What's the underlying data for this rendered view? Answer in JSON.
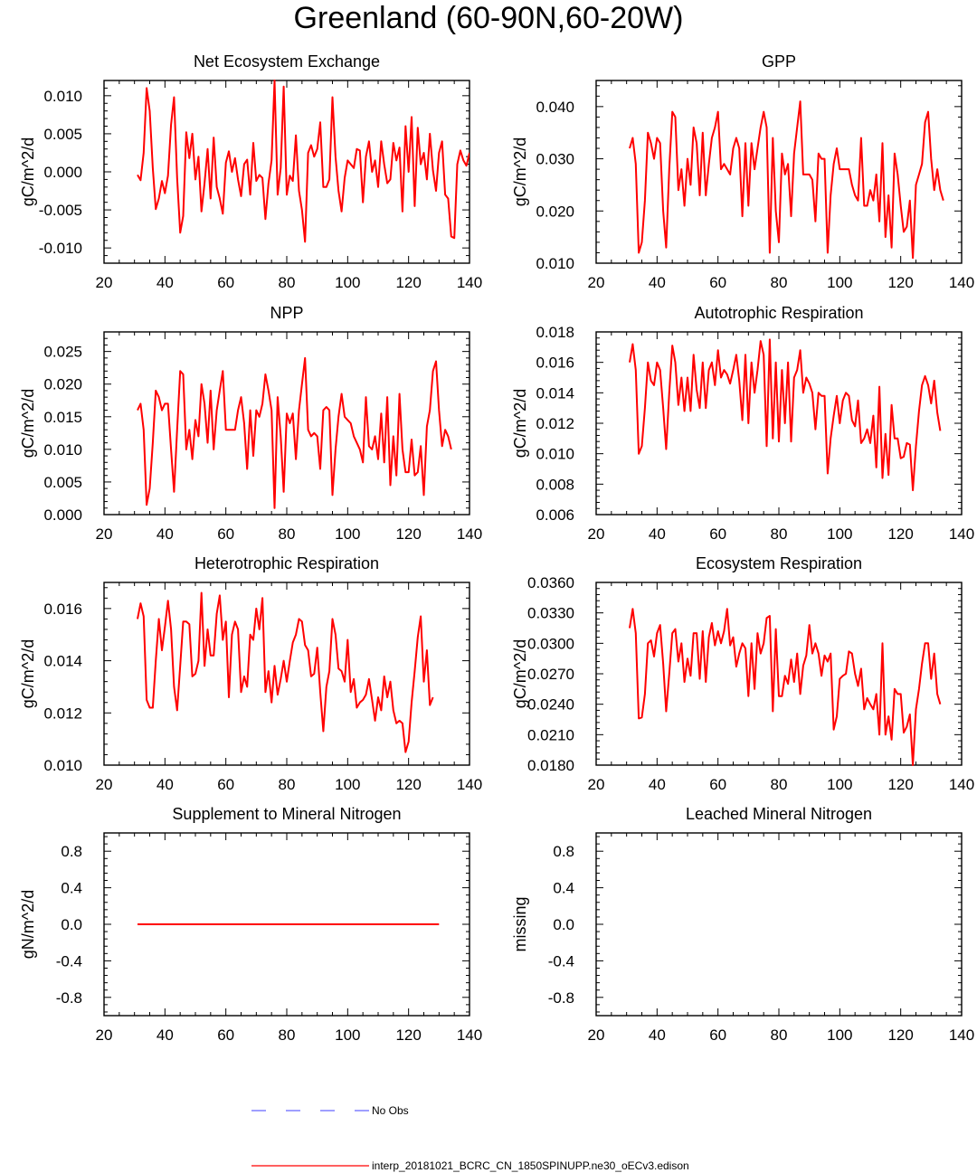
{
  "page_title": "Greenland (60-90N,60-20W)",
  "colors": {
    "model_line": "#ff0000",
    "obs_line": "#6666ff",
    "axis": "#000000"
  },
  "legend": {
    "entries": [
      {
        "label": "No Obs",
        "style": "dashed",
        "color": "#6666ff"
      },
      {
        "label": "interp_20181021_BCRC_CN_1850SPINUPP.ne30_oECv3.edison",
        "style": "solid",
        "color": "#ff0000"
      }
    ]
  },
  "chart_data": [
    {
      "type": "line",
      "title": "Net Ecosystem Exchange",
      "ylabel": "gC/m^2/d",
      "xlim": [
        20,
        140
      ],
      "ylim": [
        -0.012,
        0.012
      ],
      "xticks": [
        20,
        40,
        60,
        80,
        100,
        120,
        140
      ],
      "yticks": [
        -0.01,
        -0.005,
        0.0,
        0.005,
        0.01
      ],
      "ytick_labels": [
        "-0.010",
        "-0.005",
        "0.000",
        "0.005",
        "0.010"
      ],
      "x_start": 31,
      "series": [
        {
          "name": "interp_20181021_BCRC_CN_1850SPINUPP.ne30_oECv3.edison",
          "values": [
            -0.0004,
            -0.0011,
            0.0025,
            0.011,
            0.008,
            0.0005,
            -0.0049,
            -0.0035,
            -0.0012,
            -0.0028,
            -0.0005,
            0.0062,
            0.0098,
            -0.0008,
            -0.008,
            -0.0058,
            0.0052,
            0.0018,
            0.005,
            -0.001,
            0.002,
            -0.0052,
            -0.0015,
            0.003,
            -0.0035,
            0.0045,
            -0.002,
            -0.0035,
            -0.0055,
            0.0012,
            0.0027,
            0.0,
            0.0018,
            -0.001,
            -0.0032,
            0.001,
            0.0016,
            -0.003,
            0.0038,
            -0.0012,
            -0.0004,
            -0.0008,
            -0.0062,
            -0.0015,
            0.0015,
            0.012,
            -0.003,
            0.0005,
            0.0112,
            -0.003,
            -0.0005,
            -0.0012,
            0.0048,
            -0.0025,
            -0.005,
            -0.0092,
            0.0025,
            0.0035,
            0.002,
            0.003,
            0.0065,
            -0.002,
            -0.002,
            -0.001,
            0.0098,
            0.002,
            -0.0025,
            -0.0052,
            -0.0008,
            0.0015,
            0.001,
            0.0005,
            0.003,
            0.0028,
            -0.004,
            0.002,
            0.004,
            0.0,
            0.0015,
            -0.002,
            0.004,
            0.001,
            -0.0015,
            -0.001,
            0.0038,
            0.0015,
            0.0032,
            -0.0052,
            0.006,
            0.0,
            0.0072,
            -0.0045,
            0.0058,
            0.001,
            0.0025,
            -0.001,
            0.005,
            0.0002,
            -0.0025,
            0.0025,
            0.004,
            -0.003,
            -0.0035,
            -0.0085,
            -0.0087,
            0.001,
            0.0028,
            0.0015,
            0.0008,
            0.0025
          ]
        }
      ]
    },
    {
      "type": "line",
      "title": "GPP",
      "ylabel": "gC/m^2/d",
      "xlim": [
        20,
        140
      ],
      "ylim": [
        0.01,
        0.045
      ],
      "xticks": [
        20,
        40,
        60,
        80,
        100,
        120,
        140
      ],
      "yticks": [
        0.01,
        0.02,
        0.03,
        0.04
      ],
      "ytick_labels": [
        "0.010",
        "0.020",
        "0.030",
        "0.040"
      ],
      "x_start": 31,
      "series": [
        {
          "name": "interp_20181021_BCRC_CN_1850SPINUPP.ne30_oECv3.edison",
          "values": [
            0.032,
            0.034,
            0.029,
            0.012,
            0.014,
            0.022,
            0.035,
            0.033,
            0.03,
            0.034,
            0.033,
            0.02,
            0.013,
            0.028,
            0.039,
            0.038,
            0.024,
            0.028,
            0.021,
            0.03,
            0.025,
            0.036,
            0.033,
            0.023,
            0.035,
            0.023,
            0.029,
            0.034,
            0.036,
            0.039,
            0.028,
            0.029,
            0.028,
            0.027,
            0.032,
            0.034,
            0.032,
            0.019,
            0.033,
            0.021,
            0.033,
            0.028,
            0.032,
            0.036,
            0.039,
            0.036,
            0.012,
            0.034,
            0.02,
            0.014,
            0.031,
            0.027,
            0.029,
            0.019,
            0.031,
            0.036,
            0.041,
            0.027,
            0.027,
            0.027,
            0.026,
            0.018,
            0.031,
            0.03,
            0.03,
            0.012,
            0.023,
            0.029,
            0.032,
            0.028,
            0.028,
            0.028,
            0.028,
            0.025,
            0.023,
            0.022,
            0.034,
            0.021,
            0.021,
            0.024,
            0.022,
            0.027,
            0.018,
            0.033,
            0.015,
            0.023,
            0.013,
            0.031,
            0.027,
            0.021,
            0.016,
            0.017,
            0.022,
            0.011,
            0.025,
            0.027,
            0.029,
            0.037,
            0.039,
            0.03,
            0.024,
            0.028,
            0.024,
            0.022
          ]
        }
      ]
    },
    {
      "type": "line",
      "title": "NPP",
      "ylabel": "gC/m^2/d",
      "xlim": [
        20,
        140
      ],
      "ylim": [
        0.0,
        0.028
      ],
      "xticks": [
        20,
        40,
        60,
        80,
        100,
        120,
        140
      ],
      "yticks": [
        0.0,
        0.005,
        0.01,
        0.015,
        0.02,
        0.025
      ],
      "ytick_labels": [
        "0.000",
        "0.005",
        "0.010",
        "0.015",
        "0.020",
        "0.025"
      ],
      "x_start": 31,
      "series": [
        {
          "name": "interp_20181021_BCRC_CN_1850SPINUPP.ne30_oECv3.edison",
          "values": [
            0.016,
            0.017,
            0.013,
            0.0015,
            0.004,
            0.011,
            0.019,
            0.018,
            0.016,
            0.017,
            0.017,
            0.01,
            0.0035,
            0.013,
            0.022,
            0.0215,
            0.01,
            0.013,
            0.0085,
            0.0145,
            0.012,
            0.02,
            0.017,
            0.011,
            0.019,
            0.01,
            0.016,
            0.019,
            0.022,
            0.013,
            0.013,
            0.013,
            0.013,
            0.016,
            0.018,
            0.014,
            0.007,
            0.016,
            0.009,
            0.016,
            0.015,
            0.017,
            0.0215,
            0.019,
            0.016,
            0.001,
            0.018,
            0.012,
            0.0035,
            0.0155,
            0.014,
            0.0155,
            0.0085,
            0.016,
            0.02,
            0.024,
            0.013,
            0.012,
            0.0125,
            0.012,
            0.007,
            0.016,
            0.0165,
            0.016,
            0.003,
            0.01,
            0.015,
            0.0185,
            0.015,
            0.0145,
            0.014,
            0.012,
            0.011,
            0.01,
            0.008,
            0.018,
            0.0105,
            0.01,
            0.012,
            0.0085,
            0.0155,
            0.008,
            0.018,
            0.0045,
            0.012,
            0.006,
            0.0185,
            0.01,
            0.0065,
            0.0065,
            0.0115,
            0.006,
            0.0065,
            0.0105,
            0.003,
            0.0135,
            0.016,
            0.022,
            0.0235,
            0.016,
            0.0105,
            0.013,
            0.012,
            0.01
          ]
        }
      ]
    },
    {
      "type": "line",
      "title": "Autotrophic Respiration",
      "ylabel": "gC/m^2/d",
      "xlim": [
        20,
        140
      ],
      "ylim": [
        0.006,
        0.018
      ],
      "xticks": [
        20,
        40,
        60,
        80,
        100,
        120,
        140
      ],
      "yticks": [
        0.006,
        0.008,
        0.01,
        0.012,
        0.014,
        0.016,
        0.018
      ],
      "ytick_labels": [
        "0.006",
        "0.008",
        "0.010",
        "0.012",
        "0.014",
        "0.016",
        "0.018"
      ],
      "x_start": 31,
      "series": [
        {
          "name": "interp_20181021_BCRC_CN_1850SPINUPP.ne30_oECv3.edison",
          "values": [
            0.016,
            0.0172,
            0.0155,
            0.01,
            0.0105,
            0.013,
            0.016,
            0.0148,
            0.0145,
            0.016,
            0.0155,
            0.013,
            0.0103,
            0.014,
            0.0171,
            0.016,
            0.0132,
            0.015,
            0.0128,
            0.015,
            0.0128,
            0.0165,
            0.0142,
            0.013,
            0.016,
            0.013,
            0.0155,
            0.016,
            0.0145,
            0.0168,
            0.015,
            0.0155,
            0.0152,
            0.0146,
            0.0155,
            0.0165,
            0.0148,
            0.0122,
            0.0165,
            0.012,
            0.016,
            0.014,
            0.0155,
            0.0174,
            0.0165,
            0.0105,
            0.0175,
            0.011,
            0.016,
            0.0108,
            0.0155,
            0.012,
            0.016,
            0.0108,
            0.015,
            0.0155,
            0.0168,
            0.014,
            0.015,
            0.0146,
            0.014,
            0.0116,
            0.014,
            0.0138,
            0.0138,
            0.0087,
            0.011,
            0.0125,
            0.0138,
            0.012,
            0.0135,
            0.014,
            0.0138,
            0.0122,
            0.0118,
            0.0135,
            0.0107,
            0.011,
            0.0116,
            0.0107,
            0.0125,
            0.0091,
            0.0144,
            0.0084,
            0.0113,
            0.0086,
            0.0132,
            0.011,
            0.011,
            0.0097,
            0.0098,
            0.0107,
            0.0106,
            0.0076,
            0.0105,
            0.0128,
            0.0145,
            0.0151,
            0.0145,
            0.0133,
            0.0148,
            0.0127,
            0.0115
          ]
        }
      ]
    },
    {
      "type": "line",
      "title": "Heterotrophic Respiration",
      "ylabel": "gC/m^2/d",
      "xlim": [
        20,
        140
      ],
      "ylim": [
        0.01,
        0.017
      ],
      "xticks": [
        20,
        40,
        60,
        80,
        100,
        120,
        140
      ],
      "yticks": [
        0.01,
        0.012,
        0.014,
        0.016
      ],
      "ytick_labels": [
        "0.010",
        "0.012",
        "0.014",
        "0.016"
      ],
      "x_start": 31,
      "series": [
        {
          "name": "interp_20181021_BCRC_CN_1850SPINUPP.ne30_oECv3.edison",
          "values": [
            0.0156,
            0.0162,
            0.0157,
            0.0125,
            0.0122,
            0.0122,
            0.014,
            0.0156,
            0.0144,
            0.0153,
            0.0163,
            0.0152,
            0.013,
            0.0121,
            0.0138,
            0.0155,
            0.0155,
            0.0154,
            0.0134,
            0.0135,
            0.014,
            0.0166,
            0.0138,
            0.0152,
            0.0142,
            0.0142,
            0.0158,
            0.0165,
            0.0148,
            0.0155,
            0.0126,
            0.015,
            0.0155,
            0.0152,
            0.0128,
            0.0134,
            0.013,
            0.015,
            0.0148,
            0.016,
            0.0152,
            0.0164,
            0.0128,
            0.0136,
            0.0124,
            0.0138,
            0.0127,
            0.0133,
            0.014,
            0.0132,
            0.014,
            0.0147,
            0.015,
            0.0156,
            0.0155,
            0.0146,
            0.0144,
            0.0134,
            0.0135,
            0.0145,
            0.0128,
            0.0113,
            0.013,
            0.0136,
            0.0156,
            0.015,
            0.0137,
            0.0136,
            0.0132,
            0.0148,
            0.0128,
            0.0133,
            0.0122,
            0.0124,
            0.0125,
            0.0127,
            0.0133,
            0.0125,
            0.0117,
            0.0126,
            0.0121,
            0.0134,
            0.0126,
            0.0132,
            0.0121,
            0.0116,
            0.0117,
            0.0116,
            0.0105,
            0.0109,
            0.0124,
            0.0136,
            0.0149,
            0.0157,
            0.0132,
            0.0144,
            0.0123,
            0.0126
          ]
        }
      ]
    },
    {
      "type": "line",
      "title": "Ecosystem Respiration",
      "ylabel": "gC/m^2/d",
      "xlim": [
        20,
        140
      ],
      "ylim": [
        0.018,
        0.036
      ],
      "xticks": [
        20,
        40,
        60,
        80,
        100,
        120,
        140
      ],
      "yticks": [
        0.018,
        0.021,
        0.024,
        0.027,
        0.03,
        0.033,
        0.036
      ],
      "ytick_labels": [
        "0.0180",
        "0.0210",
        "0.0240",
        "0.0270",
        "0.0300",
        "0.0330",
        "0.0360"
      ],
      "x_start": 31,
      "series": [
        {
          "name": "interp_20181021_BCRC_CN_1850SPINUPP.ne30_oECv3.edison",
          "values": [
            0.0315,
            0.0334,
            0.031,
            0.0226,
            0.0227,
            0.025,
            0.03,
            0.0303,
            0.0287,
            0.031,
            0.0318,
            0.028,
            0.0233,
            0.027,
            0.031,
            0.0314,
            0.0282,
            0.03,
            0.0262,
            0.0285,
            0.0268,
            0.031,
            0.031,
            0.0265,
            0.0312,
            0.0262,
            0.0306,
            0.032,
            0.0298,
            0.0312,
            0.03,
            0.0312,
            0.0334,
            0.0298,
            0.0306,
            0.0277,
            0.029,
            0.03,
            0.0295,
            0.0248,
            0.03,
            0.0255,
            0.031,
            0.029,
            0.03,
            0.0325,
            0.0327,
            0.0233,
            0.0314,
            0.0248,
            0.0248,
            0.0268,
            0.026,
            0.0284,
            0.0262,
            0.029,
            0.025,
            0.0278,
            0.0288,
            0.0318,
            0.029,
            0.03,
            0.029,
            0.0268,
            0.0288,
            0.0282,
            0.029,
            0.0215,
            0.0228,
            0.0265,
            0.0268,
            0.027,
            0.0292,
            0.029,
            0.027,
            0.0258,
            0.0275,
            0.0235,
            0.0246,
            0.024,
            0.0235,
            0.025,
            0.021,
            0.03,
            0.021,
            0.0228,
            0.0205,
            0.0255,
            0.025,
            0.025,
            0.0212,
            0.0218,
            0.023,
            0.018,
            0.0235,
            0.0255,
            0.028,
            0.03,
            0.03,
            0.0265,
            0.029,
            0.025,
            0.024
          ]
        }
      ]
    },
    {
      "type": "line",
      "title": "Supplement to Mineral Nitrogen",
      "ylabel": "gN/m^2/d",
      "xlim": [
        20,
        140
      ],
      "ylim": [
        -1.0,
        1.0
      ],
      "xticks": [
        20,
        40,
        60,
        80,
        100,
        120,
        140
      ],
      "yticks": [
        -0.8,
        -0.4,
        0.0,
        0.4,
        0.8
      ],
      "ytick_labels": [
        "-0.8",
        "-0.4",
        "0.0",
        "0.4",
        "0.8"
      ],
      "x_start": 31,
      "series": [
        {
          "name": "interp_20181021_BCRC_CN_1850SPINUPP.ne30_oECv3.edison",
          "x": [
            31,
            130
          ],
          "values": [
            0.0,
            0.0
          ]
        }
      ]
    },
    {
      "type": "line",
      "title": "Leached Mineral Nitrogen",
      "ylabel": "missing",
      "xlim": [
        20,
        140
      ],
      "ylim": [
        -1.0,
        1.0
      ],
      "xticks": [
        20,
        40,
        60,
        80,
        100,
        120,
        140
      ],
      "yticks": [
        -0.8,
        -0.4,
        0.0,
        0.4,
        0.8
      ],
      "ytick_labels": [
        "-0.8",
        "-0.4",
        "0.0",
        "0.4",
        "0.8"
      ],
      "x_start": 31,
      "series": []
    }
  ]
}
